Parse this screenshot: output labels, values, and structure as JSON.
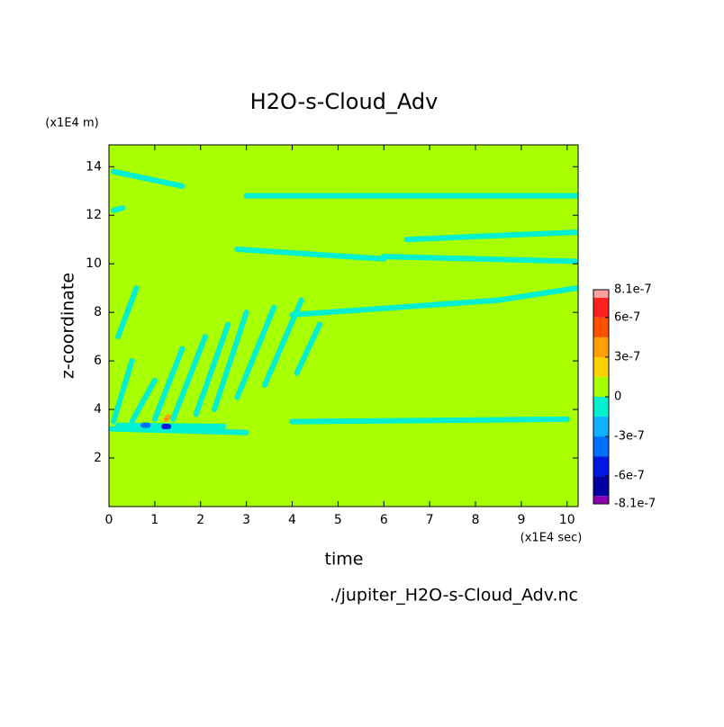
{
  "chart_data": {
    "type": "contour",
    "title": "H2O-s-Cloud_Adv",
    "xlabel": "time",
    "ylabel": "z-coordinate",
    "xunit": "(x1E4 sec)",
    "yunit": "(x1E4 m)",
    "footer": "./jupiter_H2O-s-Cloud_Adv.nc",
    "xlim": [
      0,
      10.24
    ],
    "ylim": [
      0,
      14.9
    ],
    "xticks": [
      0,
      1,
      2,
      3,
      4,
      5,
      6,
      7,
      8,
      9,
      10
    ],
    "yticks": [
      2,
      4,
      6,
      8,
      10,
      12,
      14
    ],
    "levels": [
      -8.1e-07,
      -7.5e-07,
      -6e-07,
      -4.5e-07,
      -3e-07,
      -1.5e-07,
      0,
      1.5e-07,
      3e-07,
      4.5e-07,
      6e-07,
      7.5e-07,
      8.1e-07
    ],
    "colors": [
      "#8a00b0",
      "#0000a0",
      "#0018e0",
      "#0070ff",
      "#10b0ff",
      "#00f0d0",
      "#a8ff00",
      "#ffd000",
      "#ffa000",
      "#ff5000",
      "#ff2020",
      "#ffa0a0"
    ],
    "colorbar_ticks": [
      {
        "value": 8.1e-07,
        "label": "8.1e-7"
      },
      {
        "value": 6e-07,
        "label": "6e-7"
      },
      {
        "value": 3e-07,
        "label": "3e-7"
      },
      {
        "value": 0,
        "label": "0"
      },
      {
        "value": -3e-07,
        "label": "-3e-7"
      },
      {
        "value": -6e-07,
        "label": "-6e-7"
      },
      {
        "value": -8.1e-07,
        "label": "-8.1e-7"
      }
    ],
    "background_value": 0,
    "features": [
      {
        "t": [
          0.05,
          3.0
        ],
        "z": [
          3.2,
          3.05
        ],
        "value": -1e-07
      },
      {
        "t": [
          0.2,
          2.5
        ],
        "z": [
          3.35,
          3.3
        ],
        "value": -1e-07
      },
      {
        "t": [
          0.1,
          0.5
        ],
        "z": [
          3.5,
          6.0
        ],
        "value": -1e-07
      },
      {
        "t": [
          0.5,
          1.0
        ],
        "z": [
          3.5,
          5.2
        ],
        "value": -1e-07
      },
      {
        "t": [
          1.0,
          1.6
        ],
        "z": [
          3.6,
          6.5
        ],
        "value": -1e-07
      },
      {
        "t": [
          1.4,
          2.1
        ],
        "z": [
          3.6,
          7.0
        ],
        "value": -1e-07
      },
      {
        "t": [
          1.9,
          2.6
        ],
        "z": [
          3.8,
          7.5
        ],
        "value": -1e-07
      },
      {
        "t": [
          2.3,
          3.0
        ],
        "z": [
          4.0,
          8.0
        ],
        "value": -1e-07
      },
      {
        "t": [
          2.8,
          3.6
        ],
        "z": [
          4.5,
          8.2
        ],
        "value": -1e-07
      },
      {
        "t": [
          3.4,
          4.2
        ],
        "z": [
          5.0,
          8.5
        ],
        "value": -1e-07
      },
      {
        "t": [
          4.1,
          4.6
        ],
        "z": [
          5.5,
          7.5
        ],
        "value": -1e-07
      },
      {
        "t": [
          0.2,
          0.6
        ],
        "z": [
          7.0,
          9.0
        ],
        "value": -1e-07
      },
      {
        "t": [
          4.0,
          7.0
        ],
        "z": [
          7.9,
          8.3
        ],
        "value": -1e-07
      },
      {
        "t": [
          7.0,
          8.5
        ],
        "z": [
          8.3,
          8.5
        ],
        "value": -1e-07
      },
      {
        "t": [
          8.5,
          10.2
        ],
        "z": [
          8.5,
          9.0
        ],
        "value": -1e-07
      },
      {
        "t": [
          2.8,
          6.0
        ],
        "z": [
          10.6,
          10.2
        ],
        "value": -1e-07
      },
      {
        "t": [
          6.0,
          10.2
        ],
        "z": [
          10.3,
          10.1
        ],
        "value": -1e-07
      },
      {
        "t": [
          6.5,
          10.2
        ],
        "z": [
          11.0,
          11.3
        ],
        "value": -1e-07
      },
      {
        "t": [
          3.0,
          10.2
        ],
        "z": [
          12.8,
          12.8
        ],
        "value": -1e-07
      },
      {
        "t": [
          0.1,
          1.6
        ],
        "z": [
          13.8,
          13.2
        ],
        "value": -1e-07
      },
      {
        "t": [
          0.1,
          0.3
        ],
        "z": [
          12.2,
          12.3
        ],
        "value": -1e-07
      },
      {
        "t": [
          4.0,
          10.0
        ],
        "z": [
          3.5,
          3.6
        ],
        "value": -1e-07
      },
      {
        "t": [
          0.75,
          0.85
        ],
        "z": [
          3.35,
          3.35
        ],
        "value": -4e-07
      },
      {
        "t": [
          1.2,
          1.3
        ],
        "z": [
          3.3,
          3.3
        ],
        "value": -5e-07
      },
      {
        "t": [
          1.25,
          1.3
        ],
        "z": [
          3.6,
          3.7
        ],
        "value": 3e-07
      }
    ]
  }
}
